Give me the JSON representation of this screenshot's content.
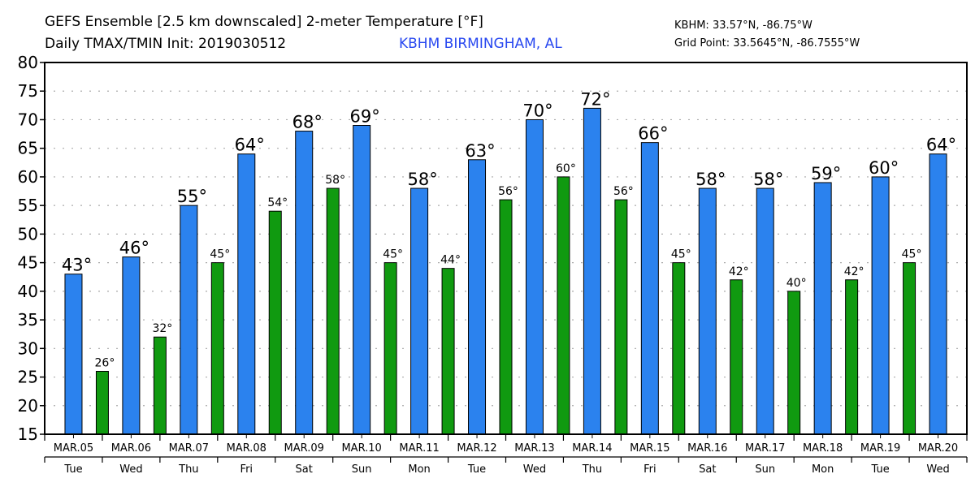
{
  "header": {
    "title_line1": "GEFS Ensemble [2.5 km downscaled] 2-meter Temperature [°F]",
    "title_line2": "Daily TMAX/TMIN Init: 2019030512",
    "station": "KBHM BIRMINGHAM, AL",
    "station_coords": "KBHM: 33.57°N, -86.75°W",
    "grid_point": "Grid Point: 33.5645°N, -86.7555°W"
  },
  "colors": {
    "tmax": "#2b82ee",
    "tmin": "#109a10",
    "grid": "#aaaaaa",
    "station_text": "#2848f0"
  },
  "chart_data": {
    "type": "bar",
    "title": "GEFS Ensemble [2.5 km downscaled] 2-meter Temperature [°F]",
    "subtitle": "Daily TMAX/TMIN Init: 2019030512",
    "xlabel": "",
    "ylabel": "",
    "ylim": [
      15,
      80
    ],
    "yticks": [
      15,
      20,
      25,
      30,
      35,
      40,
      45,
      50,
      55,
      60,
      65,
      70,
      75,
      80
    ],
    "grid": true,
    "categories": [
      "MAR.05",
      "MAR.06",
      "MAR.07",
      "MAR.08",
      "MAR.09",
      "MAR.10",
      "MAR.11",
      "MAR.12",
      "MAR.13",
      "MAR.14",
      "MAR.15",
      "MAR.16",
      "MAR.17",
      "MAR.18",
      "MAR.19",
      "MAR.20"
    ],
    "weekdays": [
      "Tue",
      "Wed",
      "Thu",
      "Fri",
      "Sat",
      "Sun",
      "Mon",
      "Tue",
      "Wed",
      "Thu",
      "Fri",
      "Sat",
      "Sun",
      "Mon",
      "Tue",
      "Wed"
    ],
    "series": [
      {
        "name": "TMAX",
        "values": [
          43,
          46,
          55,
          64,
          68,
          69,
          58,
          63,
          70,
          72,
          66,
          58,
          58,
          59,
          60,
          64
        ],
        "labels": [
          "43°",
          "46°",
          "55°",
          "64°",
          "68°",
          "69°",
          "58°",
          "63°",
          "70°",
          "72°",
          "66°",
          "58°",
          "58°",
          "59°",
          "60°",
          "64°"
        ]
      },
      {
        "name": "TMIN",
        "values": [
          26,
          32,
          45,
          54,
          58,
          45,
          44,
          56,
          60,
          56,
          45,
          42,
          40,
          42,
          45,
          null
        ],
        "labels": [
          "26°",
          "32°",
          "45°",
          "54°",
          "58°",
          "45°",
          "44°",
          "56°",
          "60°",
          "56°",
          "45°",
          "42°",
          "40°",
          "42°",
          "45°",
          null
        ]
      }
    ]
  }
}
